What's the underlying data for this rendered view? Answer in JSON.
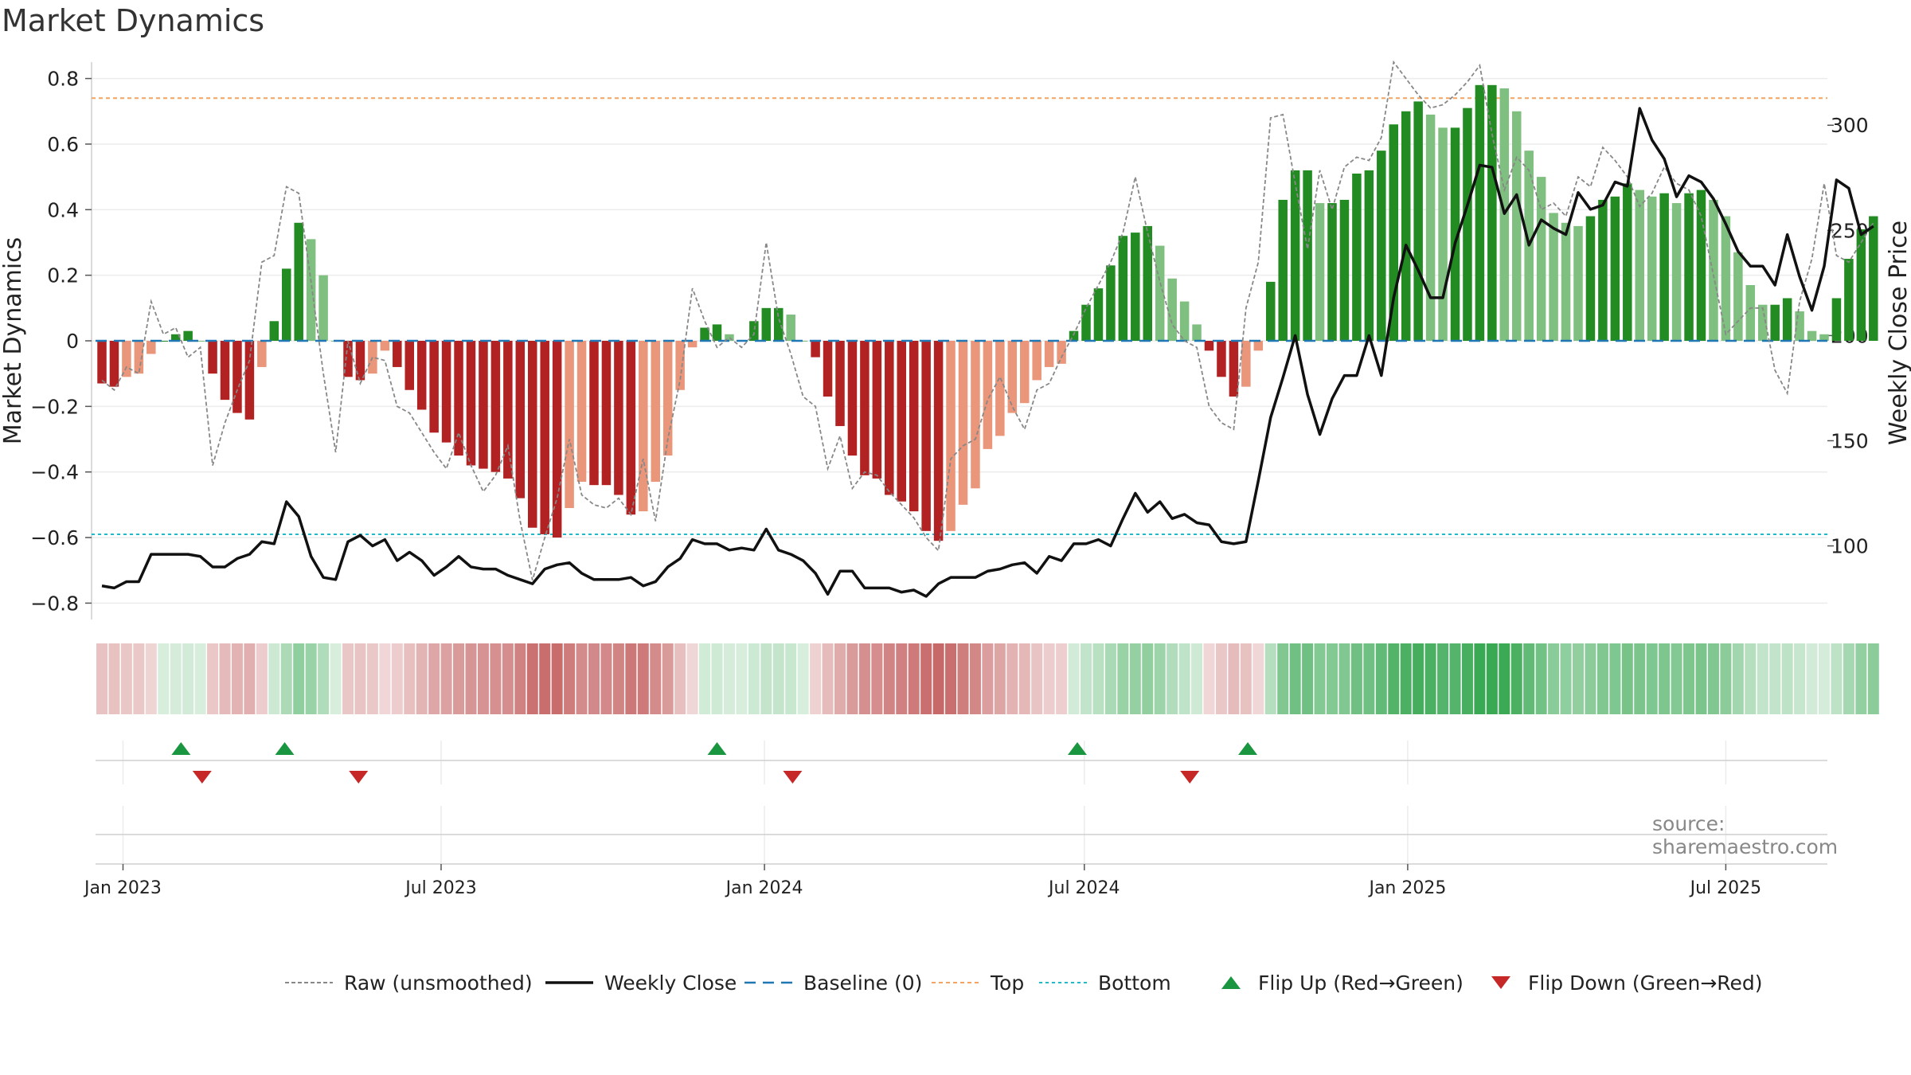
{
  "chart_data": {
    "type": "bar+line",
    "title": "Market Dynamics",
    "ylabel_left": "Market Dynamics",
    "ylabel_right": "Weekly Close Price",
    "ylim_left": [
      -0.85,
      0.85
    ],
    "ylim_right": [
      65,
      330
    ],
    "yticks_left": [
      {
        "value": 0.8,
        "label": "0.8"
      },
      {
        "value": 0.6,
        "label": "0.6"
      },
      {
        "value": 0.4,
        "label": "0.4"
      },
      {
        "value": 0.2,
        "label": "0.2"
      },
      {
        "value": 0,
        "label": "0"
      },
      {
        "value": -0.2,
        "label": "−0.2"
      },
      {
        "value": -0.4,
        "label": "−0.4"
      },
      {
        "value": -0.6,
        "label": "−0.6"
      },
      {
        "value": -0.8,
        "label": "−0.8"
      }
    ],
    "yticks_right": [
      {
        "value": 300,
        "label": "300"
      },
      {
        "value": 250,
        "label": "250"
      },
      {
        "value": 200,
        "label": "200"
      },
      {
        "value": 150,
        "label": "150"
      },
      {
        "value": 100,
        "label": "100"
      }
    ],
    "xticks": [
      {
        "date": "2023-01-01",
        "label": "Jan 2023"
      },
      {
        "date": "2023-07-01",
        "label": "Jul 2023"
      },
      {
        "date": "2024-01-01",
        "label": "Jan 2024"
      },
      {
        "date": "2024-07-01",
        "label": "Jul 2024"
      },
      {
        "date": "2025-01-01",
        "label": "Jan 2025"
      },
      {
        "date": "2025-07-01",
        "label": "Jul 2025"
      }
    ],
    "x_start": "2022-12-20",
    "weeks": 143,
    "top_line": 0.74,
    "bottom_line": -0.59,
    "baseline": 0,
    "grid": true,
    "legend_position": "bottom",
    "colors": {
      "strong_green": "#228b22",
      "light_green": "#7fbf7f",
      "strong_red": "#b22222",
      "light_red": "#e9967a",
      "raw": "#888888",
      "close": "#111111",
      "baseline": "#1f77b4",
      "top": "#f4a460",
      "bottom": "#17becf",
      "flip_up": "#1a9641",
      "flip_down": "#c62828"
    },
    "smoothed": [
      -0.13,
      -0.14,
      -0.11,
      -0.1,
      -0.04,
      0.0,
      0.02,
      0.03,
      0.0,
      -0.1,
      -0.18,
      -0.22,
      -0.24,
      -0.08,
      0.06,
      0.22,
      0.36,
      0.31,
      0.2,
      0.0,
      -0.11,
      -0.12,
      -0.1,
      -0.03,
      -0.08,
      -0.15,
      -0.21,
      -0.28,
      -0.31,
      -0.35,
      -0.38,
      -0.39,
      -0.4,
      -0.42,
      -0.48,
      -0.57,
      -0.59,
      -0.6,
      -0.51,
      -0.43,
      -0.44,
      -0.44,
      -0.47,
      -0.53,
      -0.52,
      -0.43,
      -0.35,
      -0.15,
      -0.02,
      0.04,
      0.05,
      0.02,
      0.0,
      0.06,
      0.1,
      0.1,
      0.08,
      0.0,
      -0.05,
      -0.17,
      -0.26,
      -0.35,
      -0.41,
      -0.42,
      -0.47,
      -0.49,
      -0.52,
      -0.58,
      -0.61,
      -0.58,
      -0.5,
      -0.45,
      -0.33,
      -0.29,
      -0.22,
      -0.19,
      -0.12,
      -0.08,
      -0.07,
      0.03,
      0.11,
      0.16,
      0.23,
      0.32,
      0.33,
      0.35,
      0.29,
      0.19,
      0.12,
      0.05,
      -0.03,
      -0.11,
      -0.17,
      -0.14,
      -0.03,
      0.18,
      0.43,
      0.52,
      0.52,
      0.42,
      0.42,
      0.43,
      0.51,
      0.52,
      0.58,
      0.66,
      0.7,
      0.73,
      0.69,
      0.65,
      0.65,
      0.71,
      0.78,
      0.78,
      0.77,
      0.7,
      0.58,
      0.5,
      0.39,
      0.36,
      0.35,
      0.38,
      0.43,
      0.44,
      0.48,
      0.46,
      0.44,
      0.45,
      0.42,
      0.45,
      0.46,
      0.43,
      0.38,
      0.27,
      0.17,
      0.11,
      0.11,
      0.13,
      0.09,
      0.03,
      0.02,
      0.13,
      0.25,
      0.34,
      0.38
    ],
    "raw": [
      -0.12,
      -0.15,
      -0.08,
      -0.1,
      0.12,
      0.02,
      0.04,
      -0.05,
      -0.02,
      -0.38,
      -0.25,
      -0.15,
      -0.06,
      0.24,
      0.26,
      0.47,
      0.45,
      0.18,
      -0.1,
      -0.34,
      0.0,
      -0.13,
      -0.05,
      -0.06,
      -0.2,
      -0.22,
      -0.28,
      -0.34,
      -0.39,
      -0.28,
      -0.38,
      -0.46,
      -0.41,
      -0.32,
      -0.55,
      -0.73,
      -0.6,
      -0.48,
      -0.3,
      -0.47,
      -0.5,
      -0.51,
      -0.48,
      -0.53,
      -0.36,
      -0.55,
      -0.3,
      -0.12,
      0.16,
      0.06,
      -0.02,
      0.01,
      -0.02,
      0.02,
      0.3,
      0.07,
      -0.04,
      -0.17,
      -0.2,
      -0.39,
      -0.29,
      -0.45,
      -0.4,
      -0.41,
      -0.46,
      -0.5,
      -0.54,
      -0.6,
      -0.64,
      -0.36,
      -0.32,
      -0.3,
      -0.18,
      -0.11,
      -0.2,
      -0.27,
      -0.15,
      -0.13,
      -0.05,
      0.02,
      0.1,
      0.17,
      0.24,
      0.33,
      0.5,
      0.33,
      0.18,
      0.05,
      0.0,
      -0.02,
      -0.2,
      -0.25,
      -0.27,
      0.1,
      0.24,
      0.68,
      0.69,
      0.48,
      0.28,
      0.52,
      0.4,
      0.53,
      0.56,
      0.55,
      0.62,
      0.85,
      0.8,
      0.75,
      0.71,
      0.72,
      0.75,
      0.79,
      0.84,
      0.63,
      0.46,
      0.56,
      0.52,
      0.4,
      0.42,
      0.38,
      0.5,
      0.47,
      0.59,
      0.55,
      0.5,
      0.41,
      0.45,
      0.53,
      0.48,
      0.46,
      0.38,
      0.2,
      0.02,
      0.06,
      0.1,
      0.1,
      -0.09,
      -0.16,
      0.12,
      0.25,
      0.48,
      0.26,
      0.24,
      0.3,
      0.36
    ],
    "close": [
      81,
      80,
      83,
      83,
      96,
      96,
      96,
      96,
      95,
      90,
      90,
      94,
      96,
      102,
      101,
      121,
      114,
      95,
      85,
      84,
      102,
      105,
      100,
      103,
      93,
      97,
      93,
      86,
      90,
      95,
      90,
      89,
      89,
      86,
      84,
      82,
      89,
      91,
      92,
      87,
      84,
      84,
      84,
      85,
      81,
      83,
      90,
      94,
      103,
      101,
      101,
      98,
      99,
      98,
      108,
      98,
      96,
      93,
      87,
      77,
      88,
      88,
      80,
      80,
      80,
      78,
      79,
      76,
      82,
      85,
      85,
      85,
      88,
      89,
      91,
      92,
      87,
      95,
      93,
      101,
      101,
      103,
      100,
      113,
      125,
      116,
      121,
      113,
      115,
      111,
      110,
      102,
      101,
      102,
      131,
      161,
      180,
      200,
      172,
      153,
      170,
      181,
      181,
      200,
      181,
      218,
      243,
      231,
      218,
      218,
      244,
      262,
      281,
      280,
      258,
      267,
      243,
      255,
      251,
      248,
      268,
      260,
      262,
      273,
      271,
      308,
      293,
      284,
      266,
      276,
      273,
      265,
      253,
      240,
      233,
      233,
      224,
      248,
      228,
      212,
      233,
      274,
      270,
      248,
      252
    ],
    "flips_up": [
      "2023-02-03",
      "2023-04-03",
      "2023-12-05",
      "2024-06-27",
      "2024-10-02"
    ],
    "flips_down": [
      "2023-02-15",
      "2023-05-15",
      "2024-01-17",
      "2024-08-30"
    ],
    "legend": [
      {
        "label": "Raw (unsmoothed)",
        "style": "raw"
      },
      {
        "label": "Weekly Close",
        "style": "close"
      },
      {
        "label": "Baseline (0)",
        "style": "baseline"
      },
      {
        "label": "Top",
        "style": "top"
      },
      {
        "label": "Bottom",
        "style": "bottom"
      },
      {
        "label": "Flip Up (Red→Green)",
        "style": "flip_up"
      },
      {
        "label": "Flip Down (Green→Red)",
        "style": "flip_down"
      }
    ],
    "source": "source: sharemaestro.com"
  }
}
